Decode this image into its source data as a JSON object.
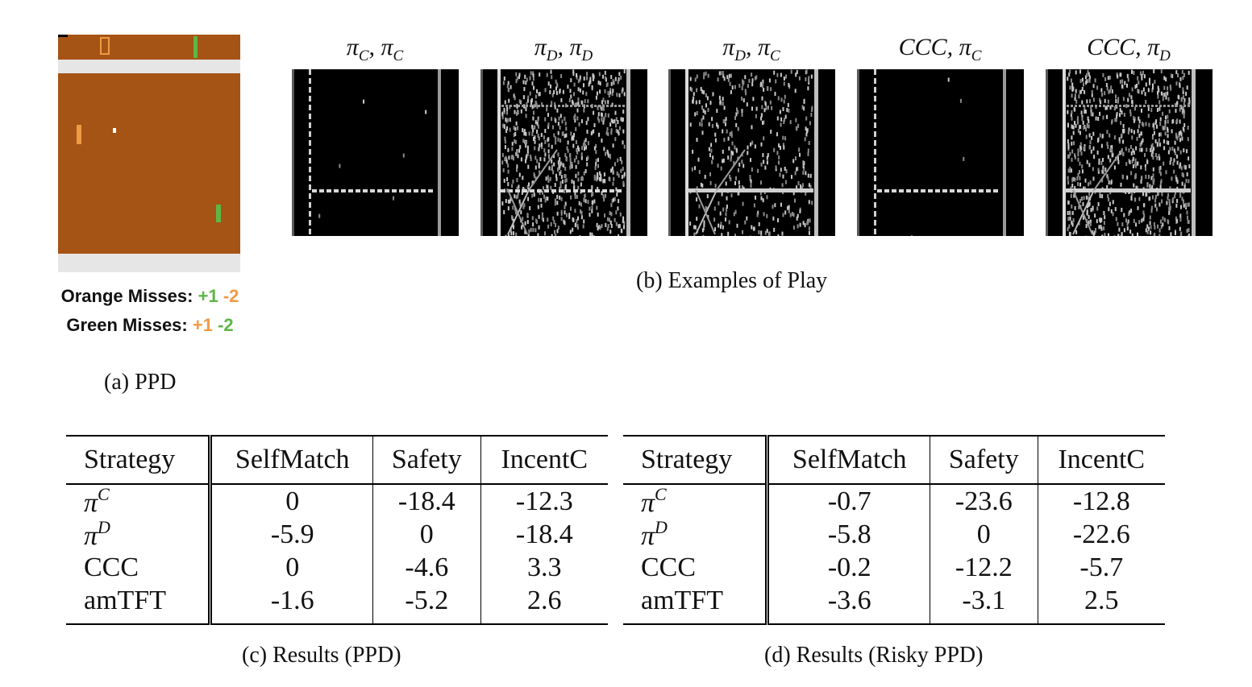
{
  "figure_a": {
    "legend": [
      {
        "label": "Orange Misses:",
        "reward_a": "+1",
        "reward_a_color": "#5db646",
        "reward_b": "-2",
        "reward_b_color": "#ef9a45"
      },
      {
        "label": "Green Misses:",
        "reward_a": "+1",
        "reward_a_color": "#ef9a45",
        "reward_b": "-2",
        "reward_b_color": "#5db646"
      }
    ],
    "caption": "(a) PPD",
    "colors": {
      "court": "#a65316",
      "band": "#e6e6e6",
      "orange_paddle": "#ef9a45",
      "green_paddle": "#5db646"
    }
  },
  "figure_b": {
    "panels": [
      {
        "title_base": "π",
        "title_sub": "C",
        "title_base2": "π",
        "title_sub2": "C"
      },
      {
        "title_base": "π",
        "title_sub": "D",
        "title_base2": "π",
        "title_sub2": "D"
      },
      {
        "title_base": "π",
        "title_sub": "D",
        "title_base2": "π",
        "title_sub2": "C"
      },
      {
        "title_base": "CCC",
        "title_sub": "",
        "title_base2": "π",
        "title_sub2": "C"
      },
      {
        "title_base": "CCC",
        "title_sub": "",
        "title_base2": "π",
        "title_sub2": "D"
      }
    ],
    "caption": "(b) Examples of Play"
  },
  "table_c": {
    "headers": [
      "Strategy",
      "SelfMatch",
      "Safety",
      "IncentC"
    ],
    "rows": [
      {
        "strategy": "π",
        "sup": "C",
        "values": [
          "0",
          "-18.4",
          "-12.3"
        ]
      },
      {
        "strategy": "π",
        "sup": "D",
        "values": [
          "-5.9",
          "0",
          "-18.4"
        ]
      },
      {
        "strategy": "CCC",
        "sup": "",
        "values": [
          "0",
          "-4.6",
          "3.3"
        ]
      },
      {
        "strategy": "amTFT",
        "sup": "",
        "values": [
          "-1.6",
          "-5.2",
          "2.6"
        ]
      }
    ],
    "caption": "(c) Results (PPD)"
  },
  "table_d": {
    "headers": [
      "Strategy",
      "SelfMatch",
      "Safety",
      "IncentC"
    ],
    "rows": [
      {
        "strategy": "π",
        "sup": "C",
        "values": [
          "-0.7",
          "-23.6",
          "-12.8"
        ]
      },
      {
        "strategy": "π",
        "sup": "D",
        "values": [
          "-5.8",
          "0",
          "-22.6"
        ]
      },
      {
        "strategy": "CCC",
        "sup": "",
        "values": [
          "-0.2",
          "-12.2",
          "-5.7"
        ]
      },
      {
        "strategy": "amTFT",
        "sup": "",
        "values": [
          "-3.6",
          "-3.1",
          "2.5"
        ]
      }
    ],
    "caption": "(d) Results (Risky PPD)"
  }
}
